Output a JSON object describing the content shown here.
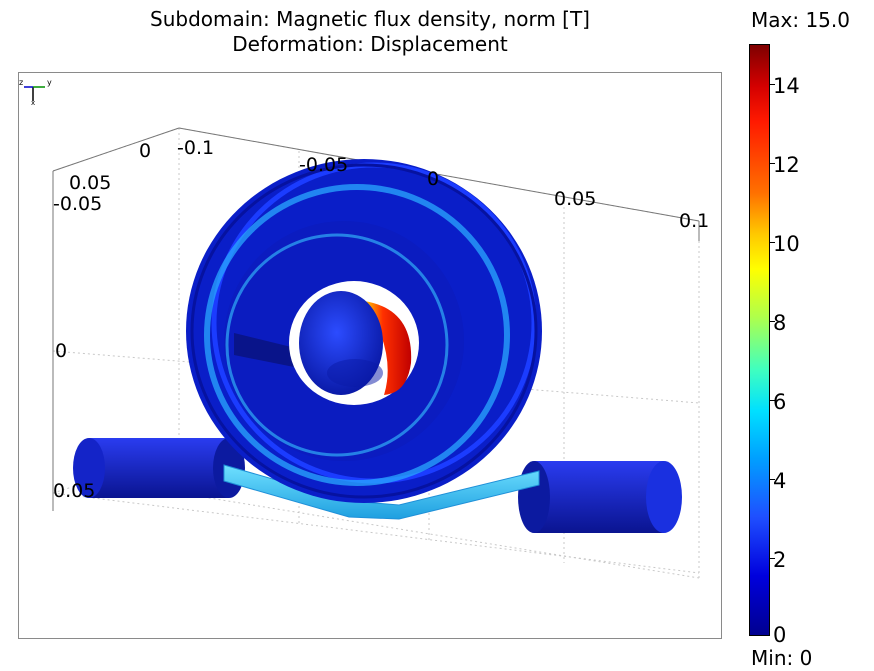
{
  "title": {
    "line1": "Subdomain: Magnetic flux density, norm [T]",
    "line2": "Deformation: Displacement"
  },
  "axis_ticks": {
    "top_axis": [
      "-0.1",
      "-0.05",
      "0",
      "0.05",
      "0.1"
    ],
    "left_upper": [
      "0",
      "0.05",
      "-0.05"
    ],
    "left_mid": "0",
    "left_lower": "0.05"
  },
  "colorbar": {
    "max_label": "Max: 15.0",
    "min_label": "Min: 0",
    "ticks": [
      "14",
      "12",
      "10",
      "8",
      "6",
      "4",
      "2",
      "0"
    ],
    "range": [
      0,
      15
    ],
    "colormap": "jet"
  },
  "orientation_triad": {
    "labels": [
      "z",
      "y",
      "x"
    ]
  },
  "colors": {
    "coil_dark_blue": "#0a1ec8",
    "hot_red": "#e01010",
    "cyan_rod": "#3cc8f0"
  }
}
